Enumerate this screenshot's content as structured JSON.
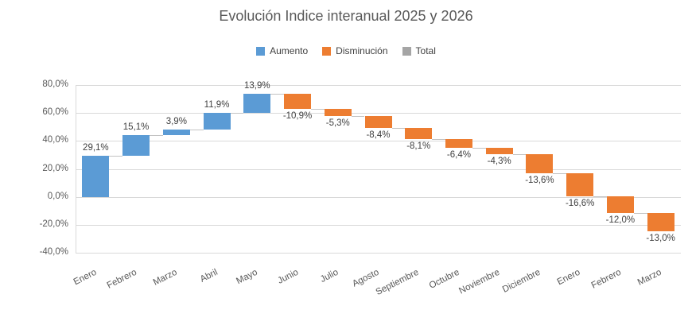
{
  "chart_data": {
    "type": "waterfall",
    "title": "Evolución Indice interanual 2025 y 2026",
    "legend": [
      {
        "label": "Aumento",
        "color": "#5B9BD5"
      },
      {
        "label": "Disminución",
        "color": "#ED7D31"
      },
      {
        "label": "Total",
        "color": "#A5A5A5"
      }
    ],
    "categories": [
      "Enero",
      "Febrero",
      "Marzo",
      "Abril",
      "Mayo",
      "Junio",
      "Julio",
      "Agosto",
      "Septiembre",
      "Octubre",
      "Noviembre",
      "Diciembre",
      "Enero",
      "Febrero",
      "Marzo"
    ],
    "values": [
      29.1,
      15.1,
      3.9,
      11.9,
      13.9,
      -10.9,
      -5.3,
      -8.4,
      -8.1,
      -6.4,
      -4.3,
      -13.6,
      -16.6,
      -12.0,
      -13.0
    ],
    "labels": [
      "29,1%",
      "15,1%",
      "3,9%",
      "11,9%",
      "13,9%",
      "-10,9%",
      "-5,3%",
      "-8,4%",
      "-8,1%",
      "-6,4%",
      "-4,3%",
      "-13,6%",
      "-16,6%",
      "-12,0%",
      "-13,0%"
    ],
    "y_axis": {
      "min": -40,
      "max": 80,
      "ticks": [
        80,
        60,
        40,
        20,
        0,
        -20,
        -40
      ],
      "tick_labels": [
        "80,0%",
        "60,0%",
        "40,0%",
        "20,0%",
        "0,0%",
        "-20,0%",
        "-40,0%"
      ]
    },
    "colors": {
      "aumento": "#5B9BD5",
      "disminucion": "#ED7D31",
      "total": "#A5A5A5",
      "gridline": "#D9D9D9",
      "connector": "#C3C3C3",
      "text": "#595959",
      "data_label": "#404040",
      "background": "#FFFFFF"
    },
    "grid": true,
    "legend_position": "top"
  }
}
